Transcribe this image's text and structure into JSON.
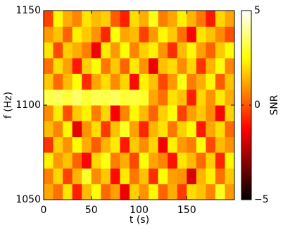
{
  "chart_data": {
    "type": "heatmap",
    "xlabel": "t (s)",
    "ylabel": "f (Hz)",
    "colorbar_label": "SNR",
    "xlim": [
      0,
      200
    ],
    "ylim": [
      1050,
      1150
    ],
    "xticks": [
      0,
      50,
      100,
      150
    ],
    "yticks": [
      1050,
      1100,
      1150
    ],
    "clim": [
      -5,
      5
    ],
    "cticks": [
      {
        "value": -5,
        "label": "−5"
      },
      0,
      5
    ],
    "colormap": "hot",
    "values": [
      [
        1.2,
        0.4,
        2.1,
        -0.8,
        1.5,
        2.6,
        0.3,
        1.1,
        -1.5,
        1.8,
        0.9,
        2.4,
        0.2,
        1.3,
        -0.4,
        2.0,
        1.6,
        0.7,
        2.8,
        1.0
      ],
      [
        0.6,
        1.9,
        -0.3,
        1.4,
        2.9,
        0.8,
        1.7,
        -1.1,
        2.2,
        0.5,
        1.6,
        -0.6,
        2.5,
        1.1,
        0.9,
        -1.8,
        1.4,
        2.3,
        0.4,
        1.7
      ],
      [
        2.3,
        1.0,
        1.6,
        0.2,
        -1.2,
        1.9,
        2.7,
        0.6,
        1.3,
        -0.2,
        2.6,
        1.2,
        0.7,
        -1.0,
        2.1,
        1.5,
        0.3,
        1.8,
        -0.7,
        2.4
      ],
      [
        -0.5,
        1.8,
        0.9,
        2.5,
        1.3,
        0.1,
        1.4,
        2.2,
        -0.9,
        1.7,
        0.8,
        1.9,
        -1.4,
        2.3,
        1.0,
        0.6,
        2.6,
        -0.2,
        1.5,
        0.9
      ],
      [
        1.5,
        0.7,
        2.4,
        -1.6,
        0.9,
        2.0,
        -0.4,
        1.6,
        2.8,
        1.1,
        -0.7,
        1.4,
        2.1,
        0.5,
        1.8,
        2.5,
        -0.9,
        1.2,
        2.0,
        0.3
      ],
      [
        0.8,
        2.2,
        -0.1,
        1.7,
        2.3,
        0.6,
        1.9,
        -1.3,
        0.7,
        2.4,
        1.5,
        0.2,
        1.8,
        2.6,
        -0.3,
        1.1,
        1.7,
        0.8,
        -1.2,
        1.9
      ],
      [
        3.2,
        3.4,
        3.1,
        3.5,
        3.0,
        3.3,
        3.2,
        3.4,
        3.0,
        3.1,
        2.9,
        1.2,
        0.4,
        2.1,
        1.6,
        -0.8,
        1.9,
        0.9,
        2.2,
        1.3
      ],
      [
        1.7,
        0.3,
        1.5,
        2.6,
        -0.6,
        1.2,
        2.0,
        0.8,
        1.9,
        -1.1,
        2.3,
        1.6,
        -0.2,
        1.0,
        2.7,
        0.6,
        1.3,
        2.4,
        0.1,
        1.6
      ],
      [
        0.4,
        2.0,
        1.1,
        -0.9,
        1.8,
        2.5,
        0.5,
        1.7,
        0.2,
        2.2,
        0.9,
        -1.5,
        1.6,
        2.0,
        0.8,
        1.9,
        -0.5,
        1.4,
        2.6,
        0.7
      ],
      [
        2.1,
        -0.2,
        1.8,
        1.3,
        0.6,
        -1.4,
        2.2,
        1.0,
        2.5,
        0.7,
        1.8,
        2.3,
        0.9,
        -0.6,
        1.5,
        2.4,
        1.1,
        0.2,
        1.7,
        2.5
      ],
      [
        1.0,
        1.6,
        0.2,
        2.3,
        1.7,
        0.9,
        -0.7,
        2.6,
        1.2,
        1.5,
        -0.3,
        1.0,
        2.4,
        1.7,
        0.4,
        -1.2,
        2.1,
        1.6,
        0.8,
        -0.1
      ],
      [
        -0.3,
        2.4,
        1.3,
        0.7,
        2.1,
        1.5,
        1.8,
        0.1,
        -0.8,
        2.0,
        1.3,
        2.7,
        0.6,
        1.2,
        2.3,
        1.4,
        0.5,
        -0.9,
        1.9,
        1.2
      ]
    ]
  }
}
